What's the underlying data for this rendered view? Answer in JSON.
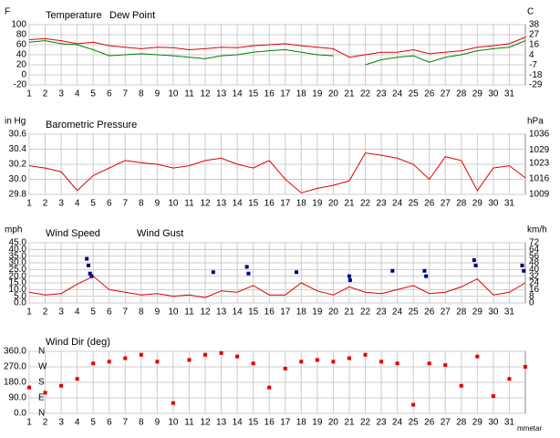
{
  "chart_data": [
    {
      "type": "line",
      "ylabel": "F",
      "y2label": "C",
      "x": [
        1,
        2,
        3,
        4,
        5,
        6,
        7,
        8,
        9,
        10,
        11,
        12,
        13,
        14,
        15,
        16,
        17,
        18,
        19,
        20,
        21,
        22,
        23,
        24,
        25,
        26,
        27,
        28,
        29,
        30,
        31,
        32
      ],
      "xlim": [
        1,
        32
      ],
      "xticks": [
        1,
        2,
        3,
        4,
        5,
        6,
        7,
        8,
        9,
        10,
        11,
        12,
        13,
        14,
        15,
        16,
        17,
        18,
        19,
        20,
        21,
        22,
        23,
        24,
        25,
        26,
        27,
        28,
        29,
        30,
        31
      ],
      "ylim": [
        -20,
        100
      ],
      "yticks": [
        100,
        80,
        60,
        40,
        20,
        0,
        -20
      ],
      "y2lim": [
        -29,
        38
      ],
      "y2ticks": [
        38,
        27,
        16,
        4,
        -7,
        -18,
        -29
      ],
      "grid": true,
      "series": [
        {
          "name": "Temperature",
          "color": "#e00000",
          "values": [
            70,
            72,
            68,
            62,
            65,
            58,
            55,
            52,
            55,
            54,
            50,
            52,
            55,
            54,
            58,
            60,
            62,
            58,
            55,
            52,
            35,
            40,
            45,
            45,
            50,
            42,
            45,
            48,
            55,
            58,
            62,
            75
          ]
        },
        {
          "name": "Dew Point",
          "color": "#008000",
          "values": [
            65,
            68,
            62,
            60,
            50,
            38,
            40,
            42,
            40,
            38,
            35,
            32,
            38,
            40,
            45,
            48,
            50,
            45,
            40,
            38,
            null,
            20,
            30,
            35,
            38,
            25,
            35,
            40,
            48,
            52,
            55,
            68
          ]
        }
      ]
    },
    {
      "type": "line",
      "title": "Barometric Pressure",
      "ylabel": "in Hg",
      "y2label": "hPa",
      "x": [
        1,
        2,
        3,
        4,
        5,
        6,
        7,
        8,
        9,
        10,
        11,
        12,
        13,
        14,
        15,
        16,
        17,
        18,
        19,
        20,
        21,
        22,
        23,
        24,
        25,
        26,
        27,
        28,
        29,
        30,
        31,
        32
      ],
      "xlim": [
        1,
        32
      ],
      "xticks": [
        1,
        2,
        3,
        4,
        5,
        6,
        7,
        8,
        9,
        10,
        11,
        12,
        13,
        14,
        15,
        16,
        17,
        18,
        19,
        20,
        21,
        22,
        23,
        24,
        25,
        26,
        27,
        28,
        29,
        30,
        31
      ],
      "ylim": [
        29.8,
        30.6
      ],
      "yticks": [
        30.6,
        30.4,
        30.2,
        {
          "value": 30,
          "label": "30.0"
        },
        29.8
      ],
      "y2lim": [
        1009,
        1036
      ],
      "y2ticks": [
        1036,
        1029,
        1023,
        1016,
        1009
      ],
      "grid": true,
      "series": [
        {
          "color": "#e00000",
          "values": [
            30.18,
            30.15,
            30.1,
            29.85,
            30.05,
            30.15,
            30.25,
            30.22,
            30.2,
            30.15,
            30.18,
            30.25,
            30.28,
            30.2,
            30.15,
            30.25,
            30.0,
            29.82,
            29.88,
            29.92,
            29.98,
            30.35,
            30.32,
            30.28,
            30.2,
            30.0,
            30.3,
            30.25,
            29.85,
            30.15,
            30.18,
            30.02
          ]
        }
      ]
    },
    {
      "type": "line",
      "ylabel": "mph",
      "y2label": "km/h",
      "x": [
        1,
        2,
        3,
        4,
        5,
        6,
        7,
        8,
        9,
        10,
        11,
        12,
        13,
        14,
        15,
        16,
        17,
        18,
        19,
        20,
        21,
        22,
        23,
        24,
        25,
        26,
        27,
        28,
        29,
        30,
        31,
        32
      ],
      "xlim": [
        1,
        32
      ],
      "xticks": [
        1,
        2,
        3,
        4,
        5,
        6,
        7,
        8,
        9,
        10,
        11,
        12,
        13,
        14,
        15,
        16,
        17,
        18,
        19,
        20,
        21,
        22,
        23,
        24,
        25,
        26,
        27,
        28,
        29,
        30,
        31
      ],
      "ylim": [
        0,
        45
      ],
      "yticks": [
        {
          "value": 45,
          "label": "45.0"
        },
        {
          "value": 40,
          "label": "40.0"
        },
        {
          "value": 35,
          "label": "35.0"
        },
        {
          "value": 30,
          "label": "30.0"
        },
        {
          "value": 25,
          "label": "25.0"
        },
        {
          "value": 20,
          "label": "20.0"
        },
        {
          "value": 15,
          "label": "15.0"
        },
        {
          "value": 10,
          "label": "10.0"
        },
        {
          "value": 5,
          "label": "5.0"
        },
        {
          "value": 0,
          "label": "0.0"
        }
      ],
      "y2lim": [
        0,
        72
      ],
      "y2ticks": [
        72,
        64,
        56,
        48,
        40,
        32,
        24,
        16,
        8,
        0
      ],
      "grid": true,
      "series": [
        {
          "name": "Wind Speed",
          "color": "#e00000",
          "values": [
            8,
            6,
            7,
            14,
            20,
            10,
            8,
            6,
            7,
            5,
            6,
            4,
            9,
            8,
            13,
            6,
            6,
            15,
            9,
            6,
            12,
            8,
            7,
            10,
            13,
            7,
            8,
            12,
            18,
            6,
            8,
            15
          ]
        },
        {
          "name": "Wind Gust",
          "color": "#000080",
          "marker": "square",
          "x": [
            4.6,
            4.7,
            4.8,
            4.9,
            12.5,
            14.6,
            14.7,
            17.7,
            21,
            21.05,
            23.7,
            25.7,
            25.8,
            28.8,
            28.9,
            31.8,
            31.9
          ],
          "values": [
            33,
            28,
            22,
            20,
            23,
            27,
            22,
            23,
            20,
            17,
            24,
            24,
            20,
            32,
            28,
            28,
            24
          ]
        }
      ]
    },
    {
      "type": "scatter",
      "title": "Wind Dir (deg)",
      "x": [
        1,
        2,
        3,
        4,
        5,
        6,
        7,
        8,
        9,
        10,
        11,
        12,
        13,
        14,
        15,
        16,
        17,
        18,
        19,
        20,
        21,
        22,
        23,
        24,
        25,
        26,
        27,
        28,
        29,
        30,
        31,
        32
      ],
      "xlim": [
        1,
        32
      ],
      "xticks": [
        1,
        2,
        3,
        4,
        5,
        6,
        7,
        8,
        9,
        10,
        11,
        12,
        13,
        14,
        15,
        16,
        17,
        18,
        19,
        20,
        21,
        22,
        23,
        24,
        25,
        26,
        27,
        28,
        29,
        30,
        31
      ],
      "ylim": [
        0,
        360
      ],
      "yticks": [
        {
          "value": 360,
          "label": "360.0"
        },
        {
          "value": 270,
          "label": "270.0"
        },
        {
          "value": 180,
          "label": "180.0"
        },
        {
          "value": 90,
          "label": "90.0"
        },
        {
          "value": 0,
          "label": "0.0"
        }
      ],
      "y2lim": [
        0,
        360
      ],
      "y2ticks": [
        {
          "value": 360,
          "label": "N"
        },
        {
          "value": 270,
          "label": "W"
        },
        {
          "value": 180,
          "label": "S"
        },
        {
          "value": 90,
          "label": "E"
        },
        {
          "value": 0,
          "label": "N"
        }
      ],
      "grid": true,
      "series": [
        {
          "color": "#e00000",
          "values": [
            150,
            120,
            160,
            200,
            290,
            300,
            320,
            340,
            300,
            60,
            310,
            340,
            350,
            330,
            290,
            150,
            260,
            300,
            310,
            300,
            320,
            340,
            300,
            290,
            50,
            290,
            280,
            160,
            330,
            100,
            200,
            270
          ]
        }
      ]
    }
  ],
  "footer_text": "mmetar"
}
